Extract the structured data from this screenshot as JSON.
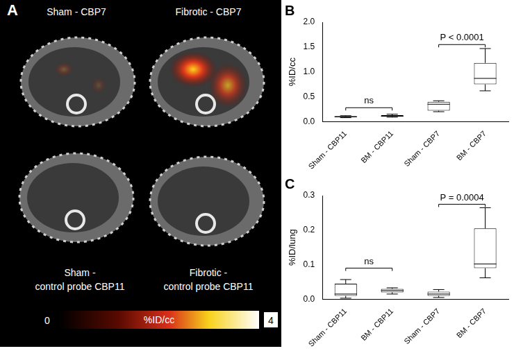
{
  "panel_a": {
    "type": "image",
    "title": "A",
    "images": [
      {
        "label": [
          "Sham - CBP7"
        ]
      },
      {
        "label": [
          "Fibrotic - CBP7"
        ]
      },
      {
        "label": [
          "Sham -",
          "control probe CBP11"
        ]
      },
      {
        "label": [
          "Fibrotic -",
          "control probe CBP11"
        ]
      }
    ],
    "colorbar": {
      "range": [
        0,
        4
      ],
      "label": "%ID/cc"
    }
  },
  "chart_data": [
    {
      "type": "box",
      "title": "B",
      "ylabel": "%ID/cc",
      "color": "#ffffff",
      "grid": false,
      "categories": [
        "Sham - CBP11",
        "BM - CBP11",
        "Sham - CBP7",
        "BM - CBP7"
      ],
      "boxes": [
        {
          "min": 0.08,
          "q1": 0.09,
          "median": 0.1,
          "q3": 0.11,
          "max": 0.12
        },
        {
          "min": 0.09,
          "q1": 0.1,
          "median": 0.11,
          "q3": 0.13,
          "max": 0.15
        },
        {
          "min": 0.2,
          "q1": 0.22,
          "median": 0.35,
          "q3": 0.4,
          "max": 0.42
        },
        {
          "min": 0.62,
          "q1": 0.75,
          "median": 0.87,
          "q3": 1.18,
          "max": 1.47
        }
      ],
      "ylim": [
        0,
        2
      ],
      "yticks": [
        {
          "value": 0,
          "label": "0.0"
        },
        0.5,
        {
          "value": 1,
          "label": "1.0"
        },
        1.5,
        {
          "value": 2,
          "label": "2.0"
        }
      ],
      "annotations": [
        {
          "text": "ns",
          "between": [
            "Sham - CBP11",
            "BM - CBP11"
          ],
          "y": 0.28
        },
        {
          "text": "P < 0.0001",
          "between": [
            "Sham - CBP7",
            "BM - CBP7"
          ],
          "y": 1.55
        }
      ]
    },
    {
      "type": "box",
      "title": "C",
      "ylabel": "%ID/lung",
      "color": "#ffffff",
      "grid": false,
      "categories": [
        "Sham - CBP11",
        "BM - CBP11",
        "Sham - CBP7",
        "BM - CBP7"
      ],
      "boxes": [
        {
          "min": 0.003,
          "q1": 0.01,
          "median": 0.015,
          "q3": 0.045,
          "max": 0.057
        },
        {
          "min": 0.015,
          "q1": 0.02,
          "median": 0.025,
          "q3": 0.03,
          "max": 0.033
        },
        {
          "min": 0.005,
          "q1": 0.01,
          "median": 0.015,
          "q3": 0.022,
          "max": 0.028
        },
        {
          "min": 0.062,
          "q1": 0.09,
          "median": 0.102,
          "q3": 0.205,
          "max": 0.265
        }
      ],
      "ylim": [
        0,
        0.3
      ],
      "yticks": [
        {
          "value": 0,
          "label": "0.0"
        },
        {
          "value": 0.1,
          "label": "0.1"
        },
        {
          "value": 0.2,
          "label": "0.2"
        },
        {
          "value": 0.3,
          "label": "0.3"
        }
      ],
      "annotations": [
        {
          "text": "ns",
          "between": [
            "Sham - CBP11",
            "BM - CBP11"
          ],
          "y": 0.09
        },
        {
          "text": "P = 0.0004",
          "between": [
            "Sham - CBP7",
            "BM - CBP7"
          ],
          "y": 0.275
        }
      ]
    }
  ]
}
